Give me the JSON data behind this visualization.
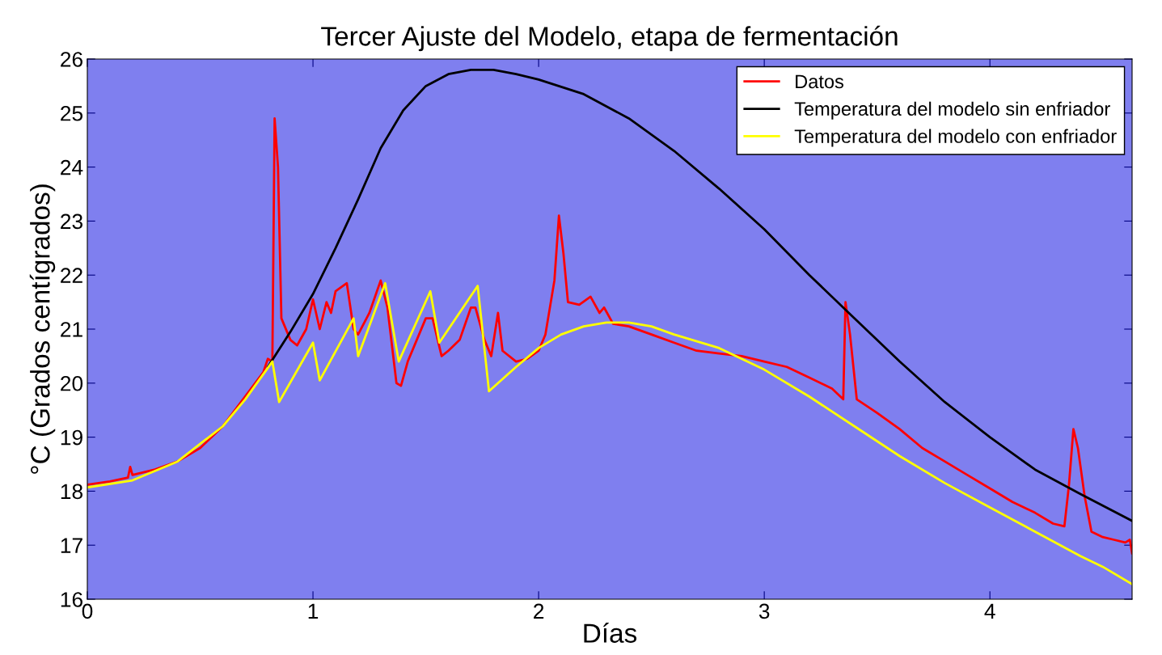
{
  "chart_data": {
    "type": "line",
    "title": "Tercer Ajuste del Modelo, etapa de fermentación",
    "xlabel": "Días",
    "ylabel": "°C (Grados centígrados)",
    "xlim": [
      0,
      4.63
    ],
    "ylim": [
      16,
      26
    ],
    "xticks": [
      0,
      1,
      2,
      3,
      4
    ],
    "yticks": [
      16,
      17,
      18,
      19,
      20,
      21,
      22,
      23,
      24,
      25,
      26
    ],
    "grid": false,
    "legend": "top right",
    "marker": "none",
    "line_style": "solid",
    "series": [
      {
        "name": "Datos",
        "color": "#ff0000",
        "x": [
          0,
          0.1,
          0.18,
          0.19,
          0.2,
          0.3,
          0.4,
          0.5,
          0.6,
          0.78,
          0.8,
          0.82,
          0.83,
          0.845,
          0.86,
          0.9,
          0.93,
          0.97,
          1.0,
          1.03,
          1.06,
          1.08,
          1.1,
          1.15,
          1.18,
          1.2,
          1.25,
          1.3,
          1.33,
          1.37,
          1.39,
          1.42,
          1.5,
          1.53,
          1.57,
          1.6,
          1.65,
          1.7,
          1.72,
          1.76,
          1.79,
          1.82,
          1.84,
          1.9,
          1.95,
          2.0,
          2.03,
          2.07,
          2.09,
          2.11,
          2.13,
          2.18,
          2.23,
          2.27,
          2.29,
          2.33,
          2.4,
          2.5,
          2.6,
          2.7,
          2.8,
          2.9,
          3.0,
          3.1,
          3.2,
          3.3,
          3.35,
          3.36,
          3.38,
          3.41,
          3.5,
          3.6,
          3.7,
          3.8,
          3.9,
          4.0,
          4.1,
          4.2,
          4.28,
          4.33,
          4.35,
          4.37,
          4.39,
          4.42,
          4.45,
          4.5,
          4.55,
          4.6,
          4.62,
          4.63
        ],
        "values": [
          18.12,
          18.18,
          18.25,
          18.45,
          18.3,
          18.4,
          18.55,
          18.8,
          19.2,
          20.2,
          20.45,
          20.4,
          24.9,
          24.0,
          21.2,
          20.8,
          20.7,
          21.0,
          21.55,
          21.0,
          21.5,
          21.3,
          21.7,
          21.85,
          21.0,
          20.9,
          21.3,
          21.9,
          21.4,
          20.0,
          19.95,
          20.4,
          21.2,
          21.2,
          20.5,
          20.6,
          20.8,
          21.4,
          21.4,
          20.8,
          20.5,
          21.3,
          20.6,
          20.4,
          20.45,
          20.6,
          20.9,
          21.9,
          23.1,
          22.4,
          21.5,
          21.45,
          21.6,
          21.3,
          21.4,
          21.1,
          21.05,
          20.9,
          20.75,
          20.6,
          20.55,
          20.5,
          20.4,
          20.3,
          20.1,
          19.9,
          19.7,
          21.5,
          20.9,
          19.7,
          19.45,
          19.15,
          18.8,
          18.55,
          18.3,
          18.05,
          17.8,
          17.6,
          17.4,
          17.35,
          18.1,
          19.15,
          18.8,
          17.9,
          17.25,
          17.15,
          17.1,
          17.05,
          17.1,
          16.85
        ]
      },
      {
        "name": "Temperatura del modelo sin enfriador",
        "color": "#000000",
        "x": [
          0.8,
          0.9,
          1.0,
          1.1,
          1.2,
          1.3,
          1.4,
          1.5,
          1.6,
          1.7,
          1.8,
          1.9,
          2.0,
          2.2,
          2.4,
          2.6,
          2.8,
          3.0,
          3.2,
          3.4,
          3.6,
          3.8,
          4.0,
          4.2,
          4.4,
          4.63
        ],
        "values": [
          20.3,
          20.95,
          21.65,
          22.5,
          23.4,
          24.35,
          25.05,
          25.5,
          25.72,
          25.8,
          25.8,
          25.72,
          25.62,
          25.35,
          24.9,
          24.3,
          23.6,
          22.85,
          22.0,
          21.2,
          20.4,
          19.65,
          19.0,
          18.4,
          17.95,
          17.45
        ]
      },
      {
        "name": "Temperatura del modelo con enfriador",
        "color": "#ffff00",
        "x": [
          0,
          0.2,
          0.4,
          0.6,
          0.7,
          0.82,
          0.85,
          1.0,
          1.03,
          1.18,
          1.2,
          1.32,
          1.38,
          1.52,
          1.56,
          1.73,
          1.78,
          1.9,
          2.0,
          2.1,
          2.2,
          2.3,
          2.4,
          2.5,
          2.6,
          2.8,
          3.0,
          3.2,
          3.4,
          3.6,
          3.8,
          4.0,
          4.2,
          4.4,
          4.5,
          4.63
        ],
        "values": [
          18.07,
          18.2,
          18.55,
          19.2,
          19.7,
          20.4,
          19.65,
          20.75,
          20.05,
          21.2,
          20.5,
          21.85,
          20.4,
          21.7,
          20.75,
          21.8,
          19.85,
          20.3,
          20.65,
          20.9,
          21.05,
          21.12,
          21.12,
          21.05,
          20.9,
          20.65,
          20.25,
          19.75,
          19.2,
          18.65,
          18.15,
          17.7,
          17.25,
          16.8,
          16.6,
          16.28
        ]
      }
    ]
  }
}
